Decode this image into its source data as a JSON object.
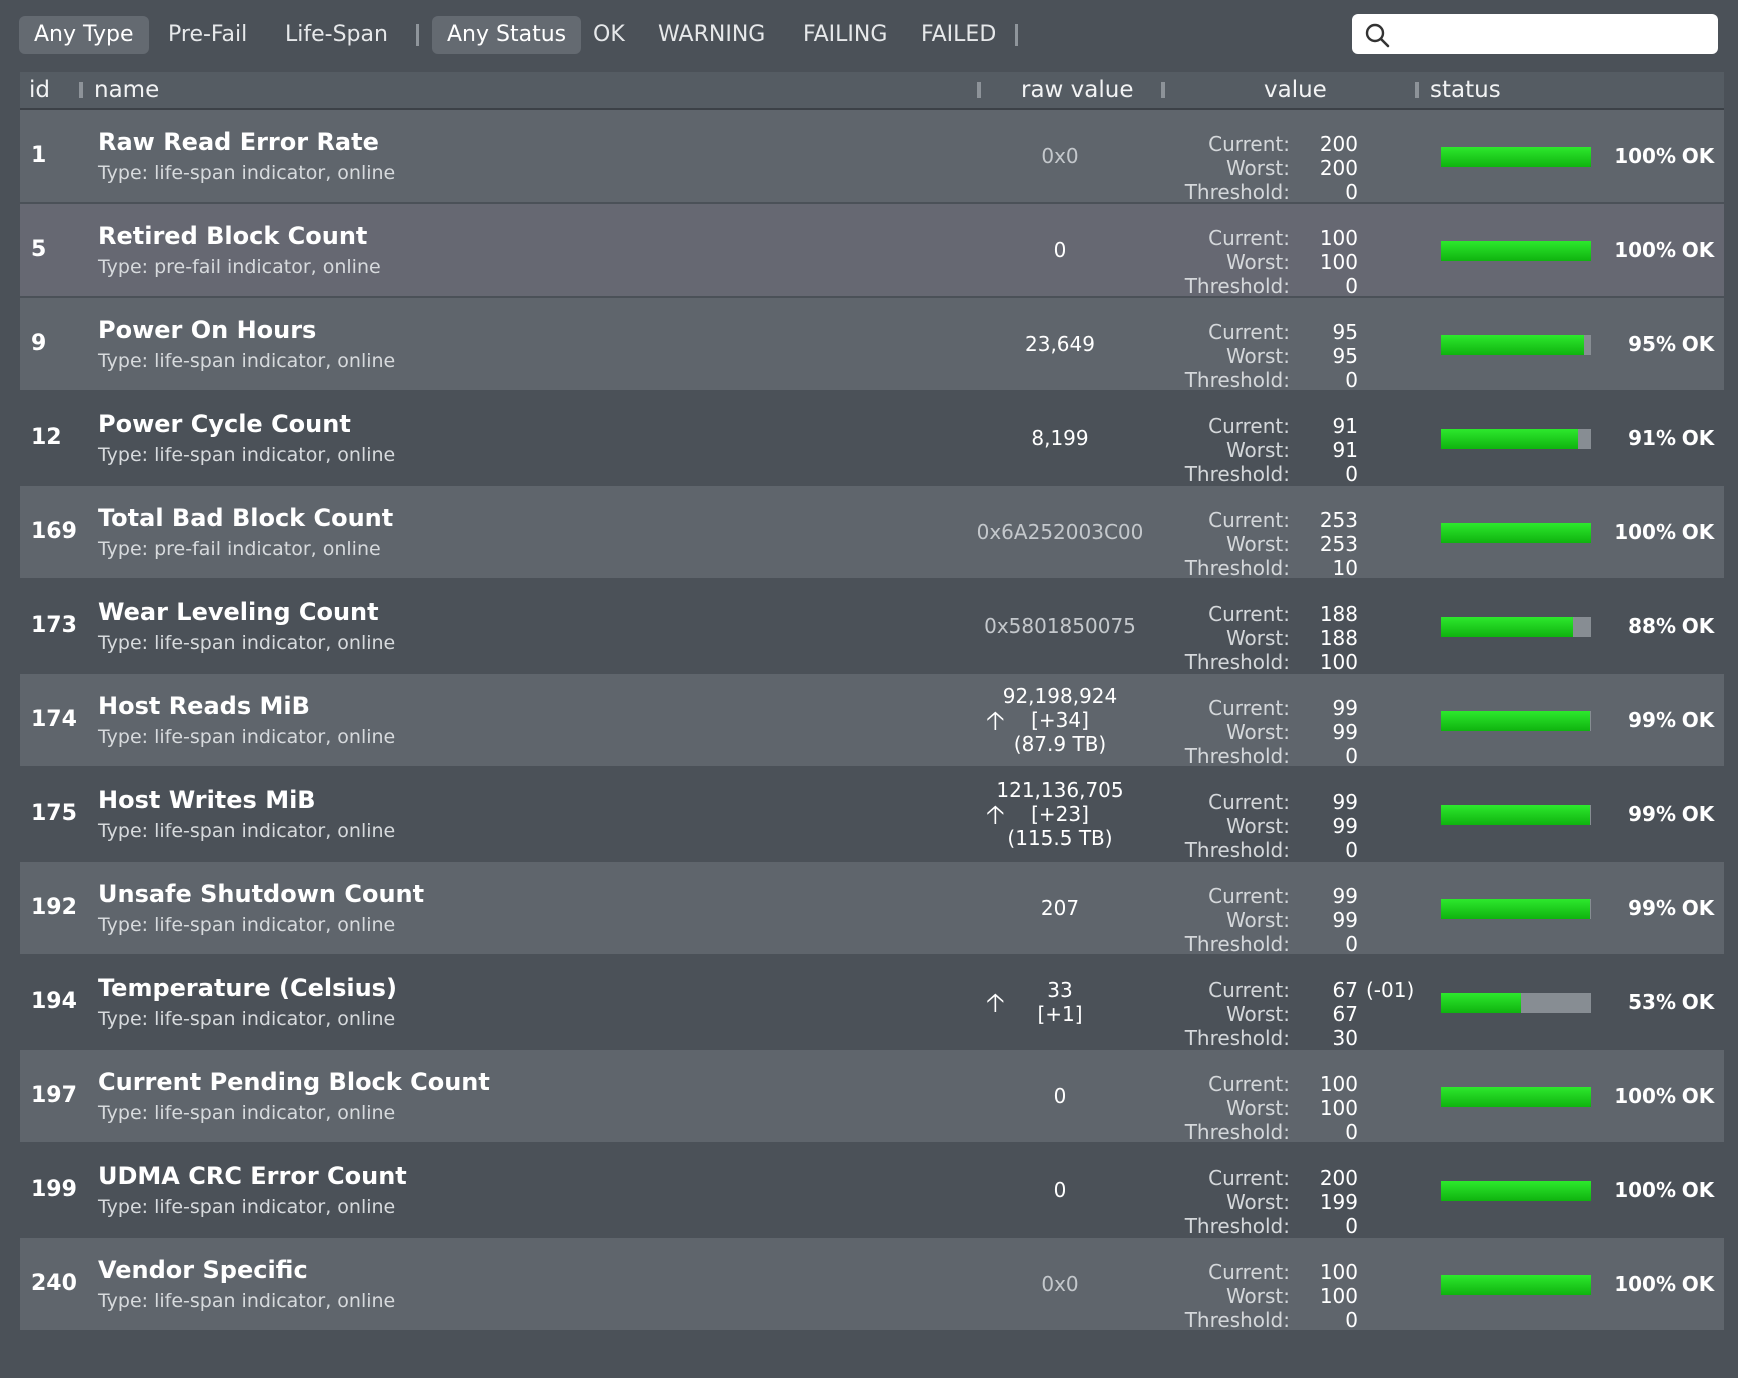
{
  "toolbar": {
    "filters": [
      "Any Type",
      "Pre-Fail",
      "Life-Span",
      "Any Status",
      "OK",
      "WARNING",
      "FAILING",
      "FAILED"
    ],
    "search": {
      "value": "",
      "icon": "search-icon"
    }
  },
  "columns": {
    "id": "id",
    "name": "name",
    "raw": "raw value",
    "value": "value",
    "status": "status"
  },
  "value_labels": {
    "current": "Current:",
    "worst": "Worst:",
    "threshold": "Threshold:"
  },
  "colors": {
    "ok_green": "#1fd31f",
    "selected_row": "#666872"
  },
  "rows": [
    {
      "id": "1",
      "name": "Raw Read Error Rate",
      "type": "Type: life-span indicator, online",
      "raw": [
        "0x0"
      ],
      "up": false,
      "current": "200",
      "worst": "200",
      "threshold": "0",
      "note": "",
      "pct": 100,
      "pct_text": "100%",
      "status": "OK"
    },
    {
      "id": "5",
      "name": "Retired Block Count",
      "type": "Type: pre-fail indicator, online",
      "raw": [
        "0"
      ],
      "up": false,
      "current": "100",
      "worst": "100",
      "threshold": "0",
      "note": "",
      "pct": 100,
      "pct_text": "100%",
      "status": "OK"
    },
    {
      "id": "9",
      "name": "Power On Hours",
      "type": "Type: life-span indicator, online",
      "raw": [
        "23,649"
      ],
      "up": false,
      "current": "95",
      "worst": "95",
      "threshold": "0",
      "note": "",
      "pct": 95,
      "pct_text": "95%",
      "status": "OK"
    },
    {
      "id": "12",
      "name": "Power Cycle Count",
      "type": "Type: life-span indicator, online",
      "raw": [
        "8,199"
      ],
      "up": false,
      "current": "91",
      "worst": "91",
      "threshold": "0",
      "note": "",
      "pct": 91,
      "pct_text": "91%",
      "status": "OK"
    },
    {
      "id": "169",
      "name": "Total Bad Block Count",
      "type": "Type: pre-fail indicator, online",
      "raw": [
        "0x6A252003C00"
      ],
      "up": false,
      "current": "253",
      "worst": "253",
      "threshold": "10",
      "note": "",
      "pct": 100,
      "pct_text": "100%",
      "status": "OK"
    },
    {
      "id": "173",
      "name": "Wear Leveling Count",
      "type": "Type: life-span indicator, online",
      "raw": [
        "0x5801850075"
      ],
      "up": false,
      "current": "188",
      "worst": "188",
      "threshold": "100",
      "note": "",
      "pct": 88,
      "pct_text": "88%",
      "status": "OK"
    },
    {
      "id": "174",
      "name": "Host Reads MiB",
      "type": "Type: life-span indicator, online",
      "raw": [
        "92,198,924",
        "[+34]",
        "(87.9 TB)"
      ],
      "up": true,
      "current": "99",
      "worst": "99",
      "threshold": "0",
      "note": "",
      "pct": 99,
      "pct_text": "99%",
      "status": "OK"
    },
    {
      "id": "175",
      "name": "Host Writes MiB",
      "type": "Type: life-span indicator, online",
      "raw": [
        "121,136,705",
        "[+23]",
        "(115.5 TB)"
      ],
      "up": true,
      "current": "99",
      "worst": "99",
      "threshold": "0",
      "note": "",
      "pct": 99,
      "pct_text": "99%",
      "status": "OK"
    },
    {
      "id": "192",
      "name": "Unsafe Shutdown Count",
      "type": "Type: life-span indicator, online",
      "raw": [
        "207"
      ],
      "up": false,
      "current": "99",
      "worst": "99",
      "threshold": "0",
      "note": "",
      "pct": 99,
      "pct_text": "99%",
      "status": "OK"
    },
    {
      "id": "194",
      "name": "Temperature (Celsius)",
      "type": "Type: life-span indicator, online",
      "raw": [
        "33",
        "[+1]"
      ],
      "up": true,
      "current": "67",
      "worst": "67",
      "threshold": "30",
      "note": "(-01)",
      "pct": 53,
      "pct_text": "53%",
      "status": "OK"
    },
    {
      "id": "197",
      "name": "Current Pending Block Count",
      "type": "Type: life-span indicator, online",
      "raw": [
        "0"
      ],
      "up": false,
      "current": "100",
      "worst": "100",
      "threshold": "0",
      "note": "",
      "pct": 100,
      "pct_text": "100%",
      "status": "OK"
    },
    {
      "id": "199",
      "name": "UDMA CRC Error Count",
      "type": "Type: life-span indicator, online",
      "raw": [
        "0"
      ],
      "up": false,
      "current": "200",
      "worst": "199",
      "threshold": "0",
      "note": "",
      "pct": 100,
      "pct_text": "100%",
      "status": "OK"
    },
    {
      "id": "240",
      "name": "Vendor Specific",
      "type": "Type: life-span indicator, online",
      "raw": [
        "0x0"
      ],
      "up": false,
      "current": "100",
      "worst": "100",
      "threshold": "0",
      "note": "",
      "pct": 100,
      "pct_text": "100%",
      "status": "OK"
    }
  ]
}
